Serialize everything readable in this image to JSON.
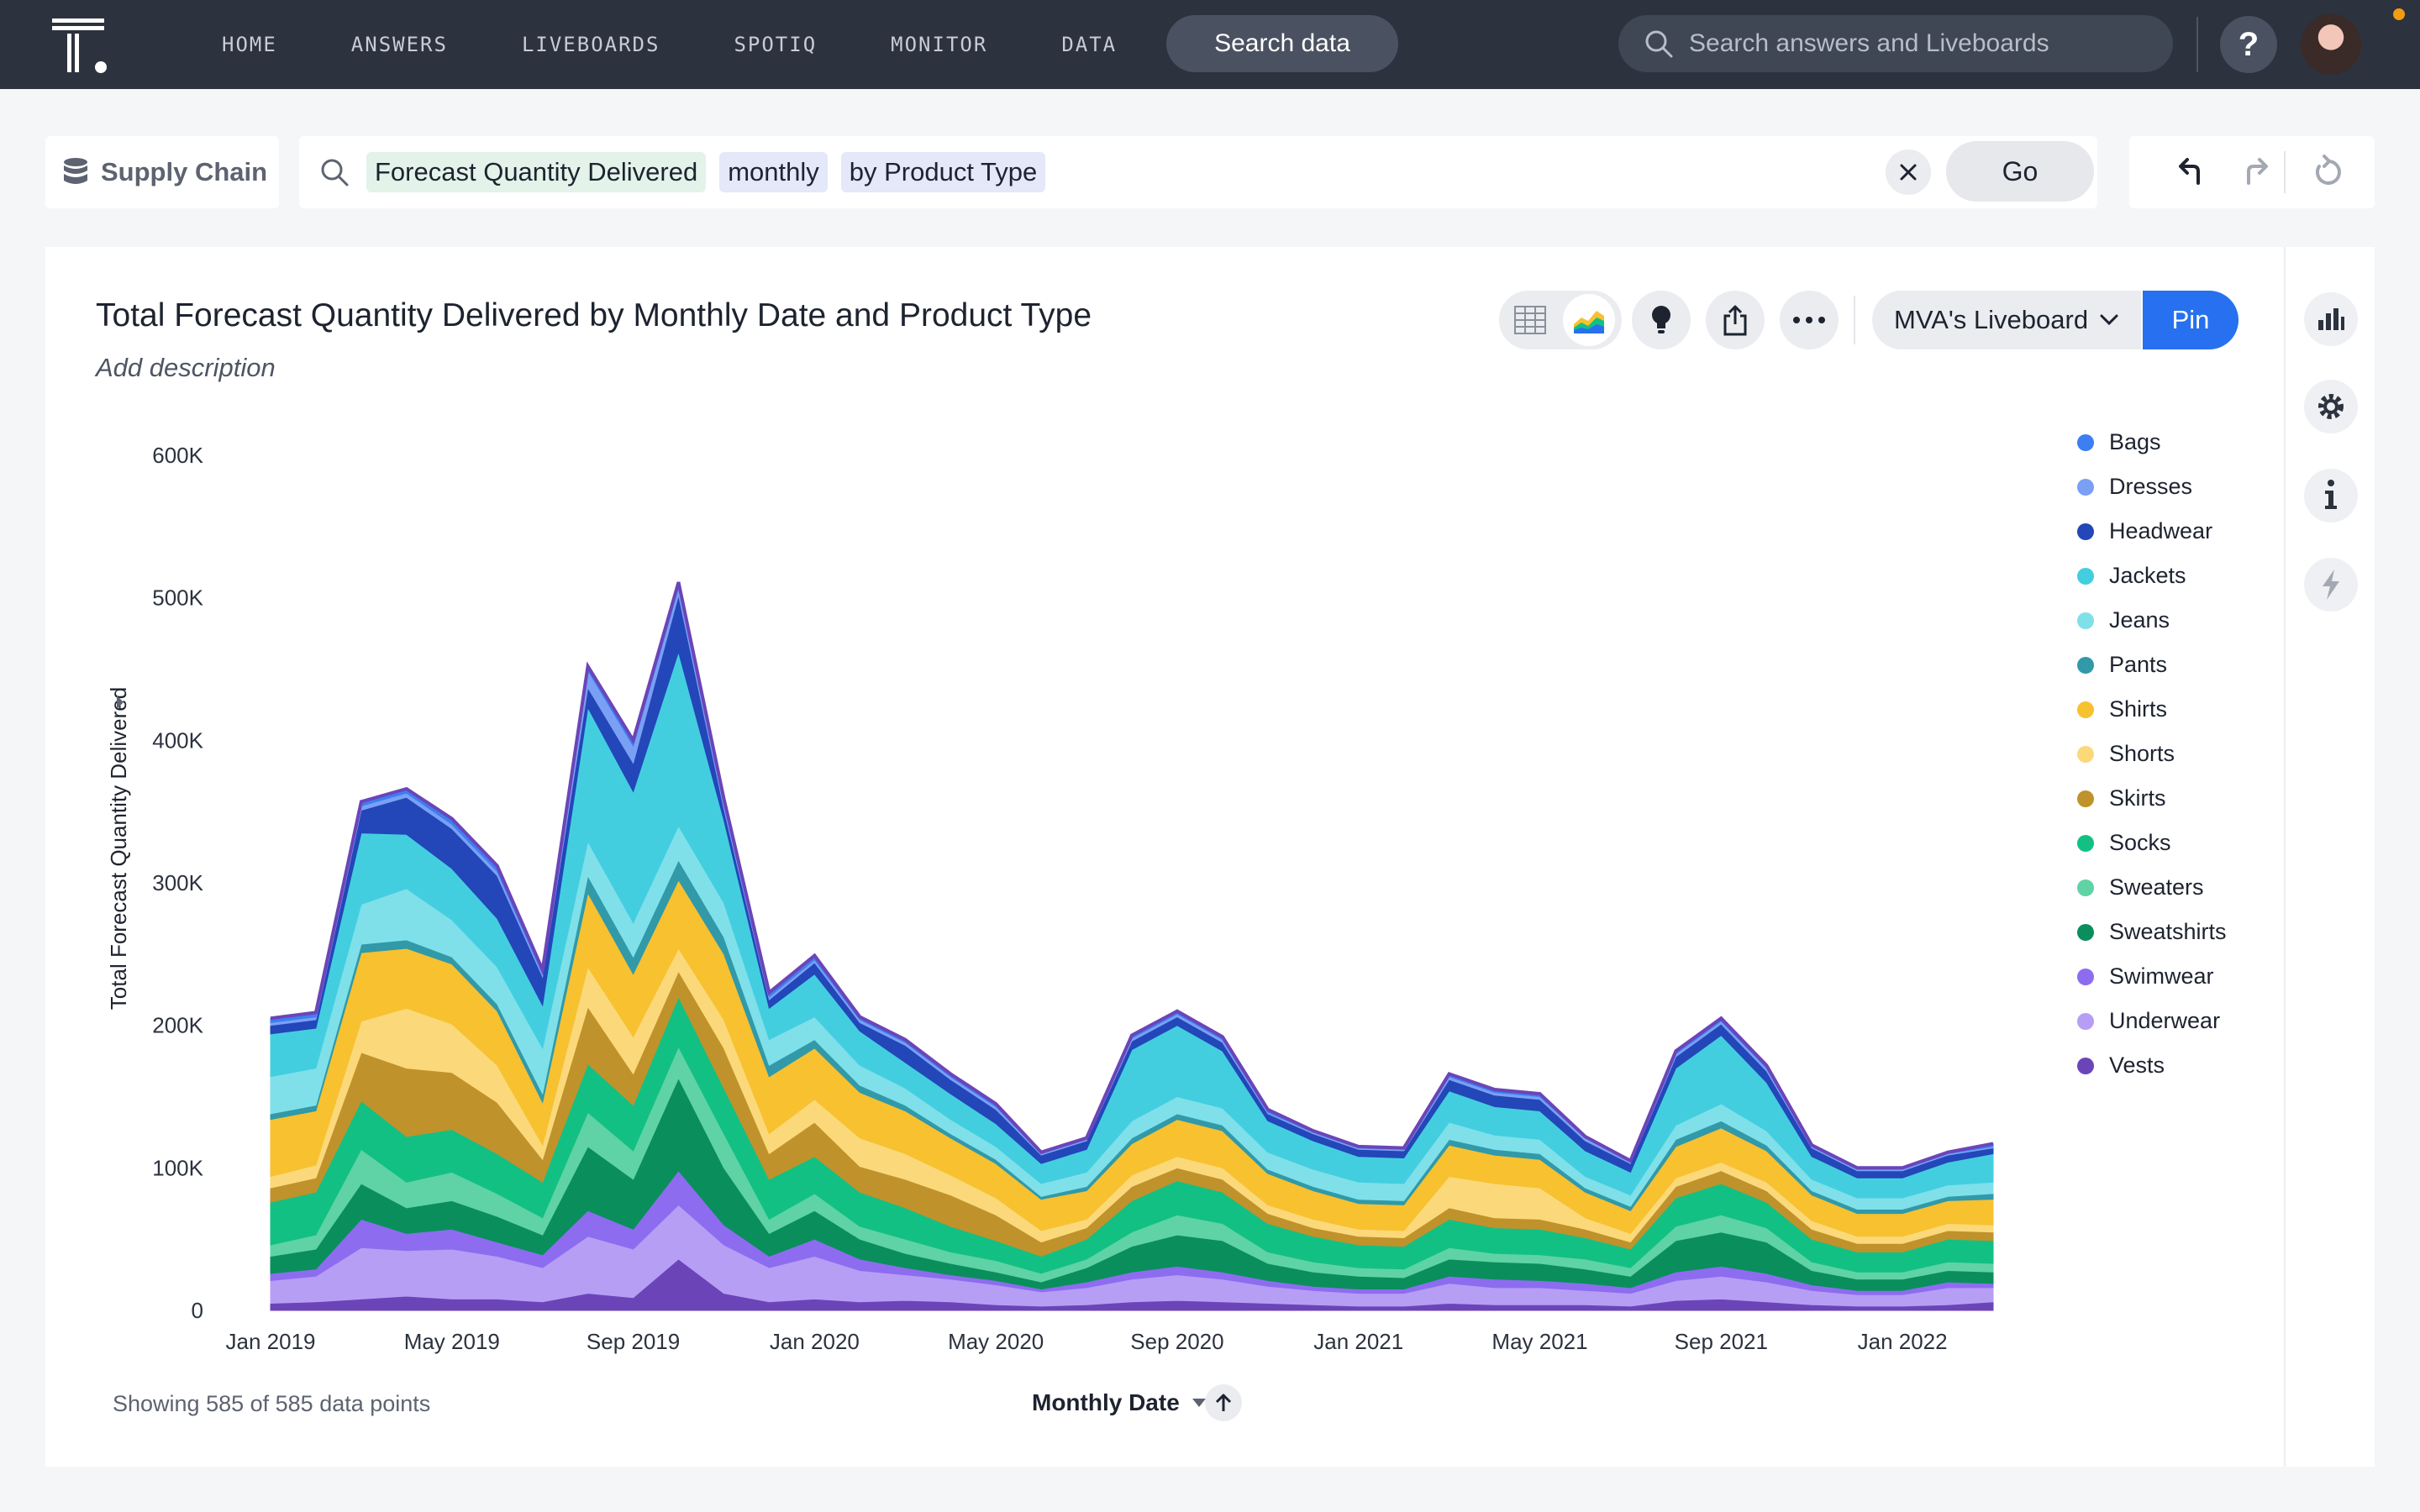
{
  "nav": {
    "links": [
      "HOME",
      "ANSWERS",
      "LIVEBOARDS",
      "SPOTIQ",
      "MONITOR",
      "DATA"
    ],
    "search_data_label": "Search data",
    "search_placeholder": "Search answers and Liveboards",
    "help_label": "?"
  },
  "searchbar": {
    "source_label": "Supply Chain",
    "tokens": [
      "Forecast Quantity Delivered",
      "monthly",
      "by Product Type"
    ],
    "go_label": "Go",
    "clear_icon": "close-icon"
  },
  "answer": {
    "title": "Total Forecast Quantity Delivered by Monthly Date and Product Type",
    "description": "Add description",
    "liveboard_select": "MVA's Liveboard",
    "pin_label": "Pin",
    "footer_note": "Showing 585 of 585 data points",
    "sort_label": "Monthly Date"
  },
  "colors": {
    "nav_bg": "#2c323e",
    "pin": "#2770ef",
    "series": [
      "#6b45b8",
      "#b69ef5",
      "#8d6cf0",
      "#0a8f5c",
      "#5fd3a6",
      "#13c083",
      "#c0922b",
      "#fbd97a",
      "#f7c130",
      "#3199a8",
      "#7fe0ea",
      "#43cee0",
      "#2346b8",
      "#7aa0f5",
      "#3d7ef2"
    ]
  },
  "chart_data": {
    "type": "area",
    "stacked": true,
    "title": "Total Forecast Quantity Delivered by Monthly Date and Product Type",
    "xlabel": "Monthly Date",
    "ylabel": "Total Forecast Quantity Delivered",
    "ylim": [
      0,
      600000
    ],
    "yticks": [
      "0",
      "100K",
      "200K",
      "300K",
      "400K",
      "500K",
      "600K"
    ],
    "xticks": [
      "Jan 2019",
      "May 2019",
      "Sep 2019",
      "Jan 2020",
      "May 2020",
      "Sep 2020",
      "Jan 2021",
      "May 2021",
      "Sep 2021",
      "Jan 2022"
    ],
    "x": [
      "2019-01",
      "2019-02",
      "2019-03",
      "2019-04",
      "2019-05",
      "2019-06",
      "2019-07",
      "2019-08",
      "2019-09",
      "2019-10",
      "2019-11",
      "2019-12",
      "2020-01",
      "2020-02",
      "2020-03",
      "2020-04",
      "2020-05",
      "2020-06",
      "2020-07",
      "2020-08",
      "2020-09",
      "2020-10",
      "2020-11",
      "2020-12",
      "2021-01",
      "2021-02",
      "2021-03",
      "2021-04",
      "2021-05",
      "2021-06",
      "2021-07",
      "2021-08",
      "2021-09",
      "2021-10",
      "2021-11",
      "2021-12",
      "2022-01",
      "2022-02",
      "2022-03"
    ],
    "legend_position": "right",
    "series": [
      {
        "name": "Vests",
        "values": [
          5000,
          6000,
          8000,
          10000,
          8000,
          8000,
          6000,
          12000,
          9000,
          36000,
          12000,
          6000,
          8000,
          6000,
          7000,
          6000,
          4000,
          3000,
          4000,
          6000,
          7000,
          6000,
          5000,
          4000,
          3000,
          3000,
          5000,
          4000,
          4000,
          4000,
          3000,
          7000,
          8000,
          6000,
          4000,
          3000,
          3000,
          4000,
          6000
        ]
      },
      {
        "name": "Underwear",
        "values": [
          16000,
          18000,
          36000,
          32000,
          35000,
          30000,
          24000,
          40000,
          34000,
          38000,
          34000,
          24000,
          30000,
          22000,
          18000,
          16000,
          14000,
          10000,
          12000,
          16000,
          18000,
          16000,
          12000,
          10000,
          9000,
          9000,
          14000,
          12000,
          12000,
          10000,
          9000,
          14000,
          16000,
          14000,
          10000,
          8000,
          8000,
          12000,
          10000
        ]
      },
      {
        "name": "Swimwear",
        "values": [
          5000,
          5000,
          20000,
          12000,
          14000,
          10000,
          9000,
          18000,
          14000,
          24000,
          14000,
          8000,
          12000,
          8000,
          5000,
          3000,
          3000,
          2000,
          4000,
          5000,
          6000,
          5000,
          4000,
          3000,
          3000,
          3000,
          5000,
          6000,
          5000,
          5000,
          4000,
          6000,
          7000,
          6000,
          4000,
          3000,
          3000,
          4000,
          3000
        ]
      },
      {
        "name": "Sweatshirts",
        "values": [
          12000,
          14000,
          25000,
          18000,
          20000,
          18000,
          14000,
          45000,
          35000,
          65000,
          40000,
          16000,
          20000,
          14000,
          10000,
          8000,
          6000,
          5000,
          10000,
          18000,
          22000,
          22000,
          12000,
          10000,
          9000,
          8000,
          12000,
          12000,
          12000,
          10000,
          8000,
          22000,
          24000,
          22000,
          10000,
          8000,
          8000,
          8000,
          8000
        ]
      },
      {
        "name": "Sweaters",
        "values": [
          8000,
          10000,
          24000,
          18000,
          20000,
          16000,
          12000,
          24000,
          20000,
          22000,
          24000,
          10000,
          12000,
          9000,
          10000,
          8000,
          8000,
          6000,
          6000,
          10000,
          14000,
          12000,
          8000,
          7000,
          6000,
          6000,
          8000,
          6000,
          6000,
          7000,
          6000,
          10000,
          12000,
          10000,
          6000,
          5000,
          5000,
          6000,
          6000
        ]
      },
      {
        "name": "Socks",
        "values": [
          30000,
          30000,
          34000,
          32000,
          30000,
          28000,
          25000,
          34000,
          32000,
          35000,
          32000,
          28000,
          26000,
          24000,
          22000,
          18000,
          14000,
          12000,
          14000,
          22000,
          24000,
          22000,
          20000,
          18000,
          16000,
          16000,
          20000,
          18000,
          18000,
          15000,
          13000,
          20000,
          22000,
          18000,
          16000,
          14000,
          14000,
          16000,
          16000
        ]
      },
      {
        "name": "Skirts",
        "values": [
          10000,
          10000,
          34000,
          48000,
          40000,
          36000,
          16000,
          40000,
          22000,
          18000,
          28000,
          18000,
          24000,
          18000,
          20000,
          22000,
          18000,
          10000,
          8000,
          10000,
          9000,
          9000,
          7000,
          6000,
          6000,
          6000,
          8000,
          7000,
          7000,
          6000,
          5000,
          8000,
          9000,
          8000,
          7000,
          6000,
          6000,
          6000,
          6000
        ]
      },
      {
        "name": "Shorts",
        "values": [
          8000,
          9000,
          22000,
          42000,
          34000,
          26000,
          10000,
          28000,
          26000,
          16000,
          20000,
          14000,
          16000,
          20000,
          18000,
          14000,
          12000,
          8000,
          6000,
          8000,
          8000,
          8000,
          6000,
          6000,
          5000,
          5000,
          22000,
          24000,
          22000,
          8000,
          6000,
          6000,
          6000,
          6000,
          6000,
          5000,
          5000,
          5000,
          5000
        ]
      },
      {
        "name": "Shirts",
        "values": [
          40000,
          38000,
          48000,
          42000,
          42000,
          38000,
          30000,
          52000,
          44000,
          48000,
          46000,
          40000,
          36000,
          32000,
          30000,
          26000,
          24000,
          22000,
          20000,
          22000,
          26000,
          26000,
          22000,
          20000,
          18000,
          18000,
          22000,
          20000,
          20000,
          18000,
          16000,
          22000,
          24000,
          22000,
          18000,
          16000,
          16000,
          16000,
          18000
        ]
      },
      {
        "name": "Pants",
        "values": [
          4000,
          4000,
          6000,
          6000,
          5000,
          5000,
          6000,
          12000,
          12000,
          14000,
          12000,
          8000,
          6000,
          5000,
          4000,
          3000,
          3000,
          2000,
          3000,
          4000,
          4000,
          4000,
          3000,
          3000,
          3000,
          3000,
          4000,
          4000,
          4000,
          3000,
          3000,
          5000,
          5000,
          4000,
          3000,
          3000,
          3000,
          3000,
          4000
        ]
      },
      {
        "name": "Jeans",
        "values": [
          26000,
          26000,
          28000,
          36000,
          26000,
          26000,
          32000,
          24000,
          24000,
          24000,
          24000,
          18000,
          16000,
          14000,
          12000,
          10000,
          9000,
          9000,
          10000,
          12000,
          12000,
          12000,
          12000,
          12000,
          12000,
          12000,
          12000,
          10000,
          10000,
          8000,
          8000,
          10000,
          12000,
          10000,
          8000,
          8000,
          8000,
          8000,
          8000
        ]
      },
      {
        "name": "Jackets",
        "values": [
          30000,
          28000,
          50000,
          38000,
          36000,
          34000,
          30000,
          94000,
          92000,
          122000,
          58000,
          22000,
          30000,
          24000,
          18000,
          18000,
          16000,
          14000,
          16000,
          50000,
          50000,
          40000,
          22000,
          20000,
          18000,
          18000,
          22000,
          20000,
          20000,
          18000,
          16000,
          40000,
          48000,
          34000,
          16000,
          14000,
          14000,
          16000,
          20000
        ]
      },
      {
        "name": "Headwear",
        "values": [
          6000,
          6000,
          16000,
          26000,
          28000,
          30000,
          20000,
          14000,
          20000,
          40000,
          8000,
          6000,
          8000,
          6000,
          12000,
          10000,
          10000,
          6000,
          6000,
          6000,
          6000,
          6000,
          5000,
          5000,
          5000,
          5000,
          8000,
          8000,
          8000,
          7000,
          6000,
          8000,
          8000,
          8000,
          6000,
          5000,
          5000,
          5000,
          4000
        ]
      },
      {
        "name": "Dresses",
        "values": [
          2000,
          2000,
          3000,
          3000,
          3000,
          3000,
          2000,
          12000,
          12000,
          5000,
          3000,
          2000,
          2000,
          2000,
          2000,
          2000,
          2000,
          1000,
          1000,
          2000,
          2000,
          2000,
          1000,
          1000,
          1000,
          1000,
          2000,
          2000,
          2000,
          2000,
          1000,
          2000,
          2000,
          2000,
          1000,
          1000,
          1000,
          1000,
          1000
        ]
      },
      {
        "name": "Bags",
        "values": [
          3000,
          3000,
          3000,
          3000,
          4000,
          4000,
          3000,
          3000,
          4000,
          4000,
          4000,
          3000,
          3000,
          2000,
          2000,
          2000,
          2000,
          1000,
          1000,
          2000,
          2000,
          2000,
          2000,
          1000,
          1000,
          1000,
          2000,
          2000,
          2000,
          1000,
          1000,
          2000,
          2000,
          2000,
          1000,
          1000,
          1000,
          1000,
          2000
        ]
      }
    ],
    "legend": [
      "Bags",
      "Dresses",
      "Headwear",
      "Jackets",
      "Jeans",
      "Pants",
      "Shirts",
      "Shorts",
      "Skirts",
      "Socks",
      "Sweaters",
      "Sweatshirts",
      "Swimwear",
      "Underwear",
      "Vests"
    ]
  }
}
